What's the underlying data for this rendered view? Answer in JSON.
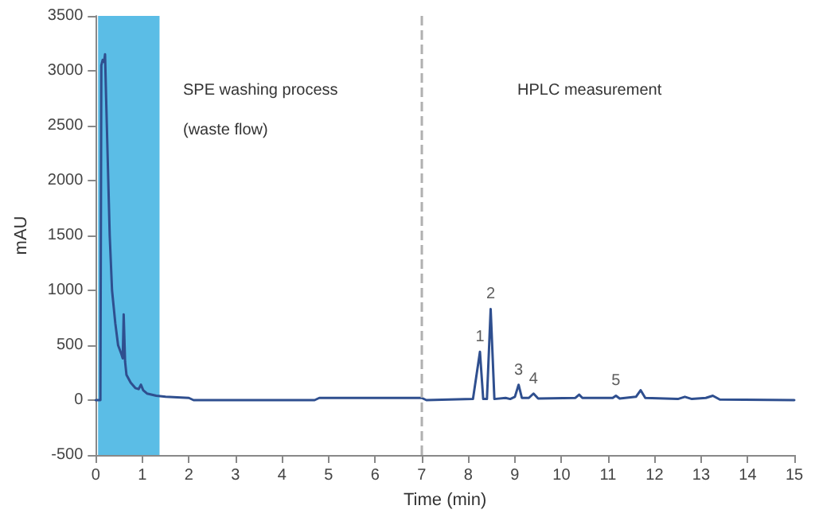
{
  "chart_data": {
    "type": "line",
    "xlabel": "Time (min)",
    "ylabel": "mAU",
    "x": [
      0,
      0.1,
      0.12,
      0.15,
      0.18,
      0.2,
      0.22,
      0.3,
      0.35,
      0.42,
      0.48,
      0.55,
      0.58,
      0.6,
      0.63,
      0.66,
      0.75,
      0.85,
      0.92,
      0.97,
      1.02,
      1.1,
      1.3,
      1.5,
      2.0,
      2.1,
      2.5,
      4.7,
      4.8,
      6.5,
      7.0,
      7.1,
      8.1,
      8.25,
      8.32,
      8.4,
      8.48,
      8.56,
      8.8,
      8.9,
      9.0,
      9.08,
      9.15,
      9.3,
      9.4,
      9.5,
      10.3,
      10.38,
      10.45,
      11.1,
      11.17,
      11.25,
      11.6,
      11.7,
      11.8,
      12.5,
      12.65,
      12.8,
      13.1,
      13.25,
      13.4,
      15
    ],
    "series": [
      {
        "color": "#2f4f8f",
        "values": [
          0,
          0,
          3050,
          3100,
          3080,
          3150,
          2800,
          1500,
          1000,
          700,
          500,
          420,
          380,
          780,
          350,
          230,
          160,
          110,
          100,
          140,
          90,
          60,
          40,
          30,
          20,
          0,
          0,
          0,
          20,
          20,
          20,
          0,
          10,
          440,
          10,
          10,
          830,
          10,
          20,
          10,
          30,
          140,
          20,
          20,
          60,
          15,
          20,
          50,
          20,
          20,
          40,
          15,
          30,
          90,
          20,
          10,
          30,
          10,
          20,
          40,
          5,
          0
        ]
      }
    ],
    "xlim": [
      0,
      15
    ],
    "xticks": [
      0,
      1,
      2,
      3,
      4,
      5,
      6,
      7,
      8,
      9,
      10,
      11,
      12,
      13,
      14,
      15
    ],
    "ylim": [
      -500,
      3500
    ],
    "yticks": [
      -500,
      0,
      500,
      1000,
      1500,
      2000,
      2500,
      3000,
      3500
    ],
    "grid": false,
    "marker": "none",
    "line_style": "solid",
    "bands": [
      {
        "axis": "x",
        "from": 0.05,
        "to": 1.37,
        "color": "#5bbde6"
      }
    ],
    "ref_lines": [
      {
        "axis": "x",
        "value": 7,
        "color": "#b0b0b0",
        "line_style": "dashed"
      }
    ],
    "annotations": [
      "SPE washing process",
      "(waste flow)",
      "HPLC measurement",
      {
        "text": "1",
        "x": 8.25,
        "y": 440
      },
      {
        "text": "2",
        "x": 8.48,
        "y": 830
      },
      {
        "text": "3",
        "x": 9.08,
        "y": 140
      },
      {
        "text": "4",
        "x": 9.4,
        "y": 60
      },
      {
        "text": "5",
        "x": 11.17,
        "y": 40
      }
    ]
  }
}
